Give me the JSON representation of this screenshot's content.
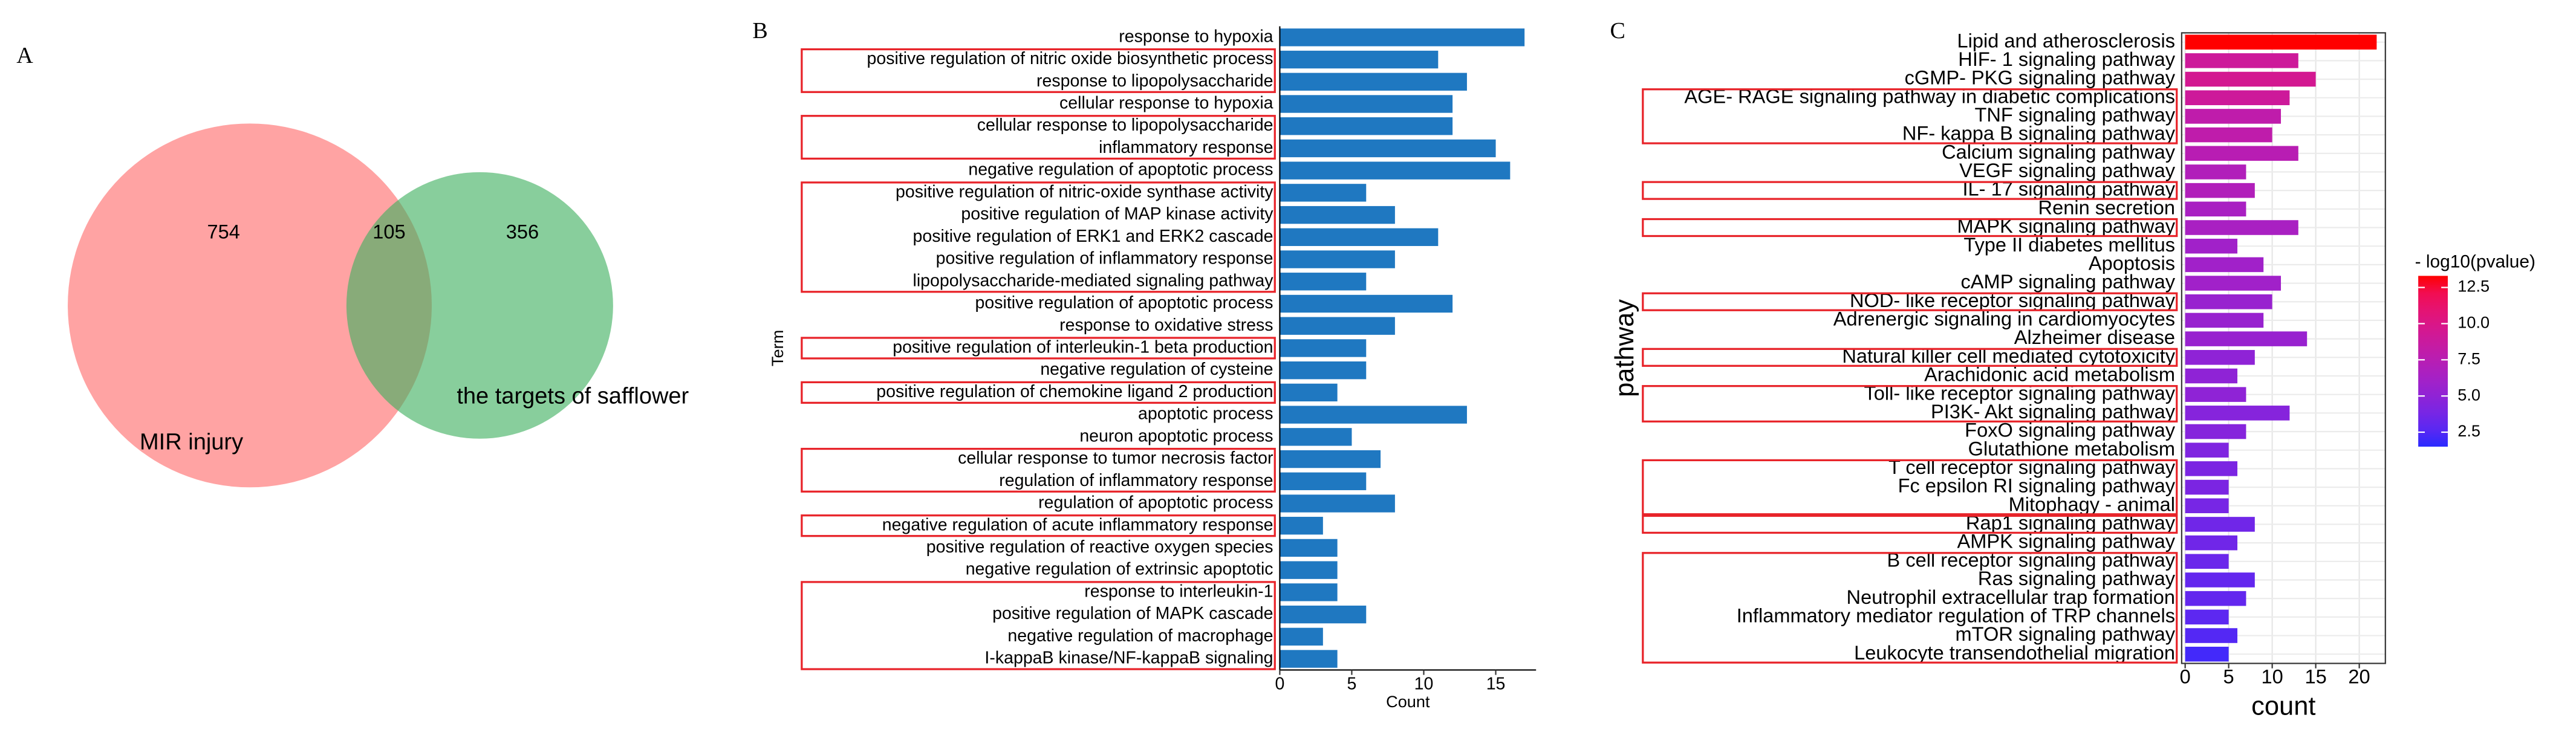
{
  "chart_data": [
    {
      "type": "venn",
      "panel": "A",
      "sets": [
        {
          "name": "MIR injury",
          "color": "#ff6b6b",
          "value": 754
        },
        {
          "name": "the targets of safflower",
          "color": "#3fb060",
          "value": 356
        }
      ],
      "intersection": 105
    },
    {
      "type": "bar",
      "panel": "B",
      "orientation": "horizontal",
      "categories": [
        "response to hypoxia",
        "positive regulation of nitric oxide biosynthetic process",
        "response to lipopolysaccharide",
        "cellular response to hypoxia",
        "cellular response to lipopolysaccharide",
        "inflammatory response",
        "negative regulation of apoptotic process",
        "positive regulation of nitric-oxide synthase activity",
        "positive regulation of MAP kinase activity",
        "positive regulation of ERK1 and ERK2 cascade",
        "positive regulation of inflammatory response",
        "lipopolysaccharide-mediated signaling pathway",
        "positive regulation of apoptotic process",
        "response to oxidative stress",
        "positive regulation of interleukin-1 beta production",
        "negative regulation of cysteine",
        "positive regulation of chemokine ligand 2 production",
        "apoptotic process",
        "neuron apoptotic process",
        "cellular response to tumor necrosis factor",
        "regulation of inflammatory response",
        "regulation of apoptotic process",
        "negative regulation of acute inflammatory response",
        "positive regulation of reactive oxygen species",
        "negative regulation of extrinsic apoptotic",
        "response to interleukin-1",
        "positive regulation of MAPK cascade",
        "negative regulation of macrophage",
        "I-kappaB kinase/NF-kappaB signaling"
      ],
      "values": [
        17,
        11,
        13,
        12,
        12,
        15,
        16,
        6,
        8,
        11,
        8,
        6,
        12,
        8,
        6,
        6,
        4,
        13,
        5,
        7,
        6,
        8,
        3,
        4,
        4,
        4,
        6,
        3,
        4
      ],
      "color": "#1f78c1",
      "xlabel": "Count",
      "ylabel": "Term",
      "xlim": [
        0,
        17.8
      ],
      "xticks": [
        0,
        5,
        10,
        15
      ]
    },
    {
      "type": "bar",
      "panel": "C",
      "orientation": "horizontal",
      "categories": [
        "Lipid and atherosclerosis",
        "HIF- 1 signaling pathway",
        "cGMP- PKG signaling pathway",
        "AGE- RAGE signaling pathway in diabetic complications",
        "TNF signaling pathway",
        "NF- kappa B signaling pathway",
        "Calcium signaling pathway",
        "VEGF signaling pathway",
        "IL- 17 signaling pathway",
        "Renin secretion",
        "MAPK signaling pathway",
        "Type II diabetes mellitus",
        "Apoptosis",
        "cAMP signaling pathway",
        "NOD- like receptor signaling pathway",
        "Adrenergic signaling in cardiomyocytes",
        "Alzheimer disease",
        "Natural killer cell mediated cytotoxicity",
        "Arachidonic acid metabolism",
        "Toll- like receptor signaling pathway",
        "PI3K- Akt signaling pathway",
        "FoxO signaling pathway",
        "Glutathione metabolism",
        "T cell receptor signaling pathway",
        "Fc epsilon RI signaling pathway",
        "Mitophagy -  animal",
        "Rap1 signaling pathway",
        "AMPK signaling pathway",
        "B cell receptor signaling pathway",
        "Ras signaling pathway",
        "Neutrophil extracellular trap formation",
        "Inflammatory mediator regulation of TRP channels",
        "mTOR signaling pathway",
        "Leukocyte transendothelial migration"
      ],
      "values": [
        22,
        13,
        15,
        12,
        11,
        10,
        13,
        7,
        8,
        7,
        13,
        6,
        9,
        11,
        10,
        9,
        14,
        8,
        6,
        7,
        12,
        7,
        5,
        6,
        5,
        5,
        8,
        6,
        5,
        8,
        7,
        5,
        6,
        5
      ],
      "color_values": [
        13.5,
        9,
        9.5,
        9,
        8,
        8,
        7.5,
        7,
        7,
        6.5,
        6.5,
        6,
        6,
        6,
        5.5,
        5.5,
        5.5,
        5,
        5,
        5,
        4.5,
        4.5,
        4.2,
        4,
        4,
        3.8,
        3.5,
        3.5,
        3.3,
        3,
        3,
        2.8,
        2.5,
        2
      ],
      "colorbar": {
        "title": "- log10(pvalue)",
        "low": "#2a2aff",
        "high": "#ff0000",
        "clim": [
          1.5,
          13.3
        ],
        "ticks": [
          12.5,
          {
            "value": 10,
            "label": "10.0"
          },
          7.5,
          {
            "value": 5,
            "label": "5.0"
          },
          2.5
        ]
      },
      "xlabel": "count",
      "ylabel": "pathway",
      "grid": true,
      "xlim": [
        -0.4,
        23
      ],
      "xticks": [
        0,
        5,
        10,
        15,
        20
      ]
    }
  ]
}
